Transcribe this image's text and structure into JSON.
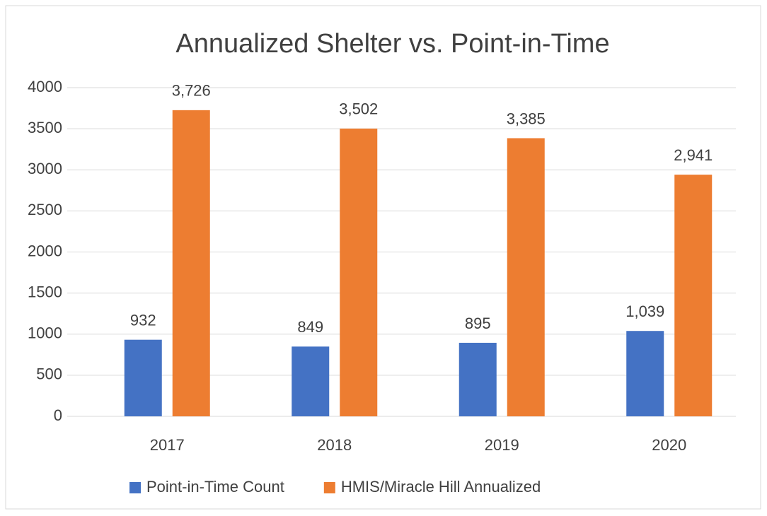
{
  "chart_data": {
    "type": "bar",
    "title": "Annualized Shelter vs. Point-in-Time",
    "categories": [
      "2017",
      "2018",
      "2019",
      "2020"
    ],
    "series": [
      {
        "name": "Point-in-Time Count",
        "color": "#4472c4",
        "values": [
          932,
          849,
          895,
          1039
        ],
        "value_labels": [
          "932",
          "849",
          "895",
          "1,039"
        ]
      },
      {
        "name": "HMIS/Miracle Hill Annualized",
        "color": "#ed7d31",
        "values": [
          3726,
          3502,
          3385,
          2941
        ],
        "value_labels": [
          "3,726",
          "3,502",
          "3,385",
          "2,941"
        ]
      }
    ],
    "ylim": [
      0,
      4000
    ],
    "yticks": [
      0,
      500,
      1000,
      1500,
      2000,
      2500,
      3000,
      3500,
      4000
    ],
    "grid": true,
    "legend": "bottom"
  }
}
